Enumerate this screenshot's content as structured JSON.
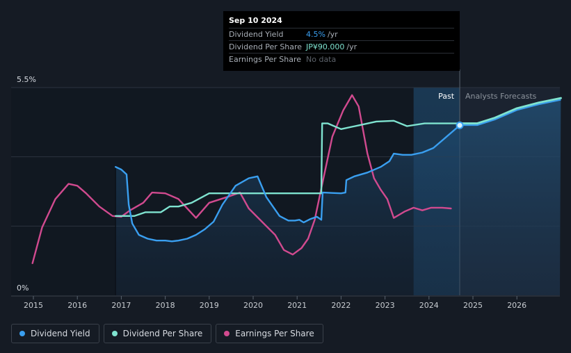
{
  "tooltip": {
    "date": "Sep 10 2024",
    "rows": [
      {
        "label": "Dividend Yield",
        "value": "4.5%",
        "unit": "/yr",
        "color": "#3a9ff0"
      },
      {
        "label": "Dividend Per Share",
        "value": "JP¥90.000",
        "unit": "/yr",
        "color": "#7fe3d0"
      },
      {
        "label": "Earnings Per Share",
        "value": "No data",
        "unit": "",
        "color": "#5d636b"
      }
    ]
  },
  "legend": [
    {
      "label": "Dividend Yield",
      "color": "#3a9ff0"
    },
    {
      "label": "Dividend Per Share",
      "color": "#7fe3d0"
    },
    {
      "label": "Earnings Per Share",
      "color": "#d14a8f"
    }
  ],
  "chart_data": {
    "type": "line",
    "title": "",
    "xlabel": "",
    "ylabel": "",
    "y_tick_labels": [
      "5.5%",
      "0%"
    ],
    "ylim": [
      0,
      5.5
    ],
    "xlim": [
      2014.5,
      2027
    ],
    "x_ticks": [
      "2015",
      "2016",
      "2017",
      "2018",
      "2019",
      "2020",
      "2021",
      "2022",
      "2023",
      "2024",
      "2025",
      "2026"
    ],
    "past_label": "Past",
    "forecast_label": "Analysts Forecasts",
    "past_boundary_x": 2024.7,
    "highlight_start_x": 2023.65,
    "series": [
      {
        "name": "Dividend Yield",
        "color": "#3a9ff0",
        "x": [
          2016.87,
          2017.0,
          2017.12,
          2017.17,
          2017.25,
          2017.4,
          2017.6,
          2017.8,
          2018.0,
          2018.15,
          2018.3,
          2018.5,
          2018.7,
          2018.9,
          2019.1,
          2019.3,
          2019.6,
          2019.9,
          2020.1,
          2020.3,
          2020.6,
          2020.8,
          2020.95,
          2021.05,
          2021.15,
          2021.3,
          2021.45,
          2021.55,
          2021.58,
          2021.6,
          2021.8,
          2022.0,
          2022.1,
          2022.12,
          2022.3,
          2022.6,
          2022.9,
          2023.1,
          2023.2,
          2023.4,
          2023.6,
          2023.85,
          2024.1,
          2024.4,
          2024.7
        ],
        "values": [
          3.4,
          3.33,
          3.2,
          2.4,
          1.9,
          1.6,
          1.5,
          1.45,
          1.45,
          1.43,
          1.45,
          1.5,
          1.6,
          1.75,
          1.95,
          2.4,
          2.9,
          3.1,
          3.15,
          2.6,
          2.1,
          1.98,
          1.98,
          2.0,
          1.93,
          2.02,
          2.08,
          2.0,
          2.72,
          2.72,
          2.71,
          2.7,
          2.72,
          3.05,
          3.15,
          3.25,
          3.4,
          3.55,
          3.75,
          3.72,
          3.72,
          3.78,
          3.9,
          4.2,
          4.5
        ]
      },
      {
        "name": "Dividend Per Share",
        "color": "#7fe3d0",
        "x": [
          2016.87,
          2017.3,
          2017.55,
          2017.9,
          2018.1,
          2018.3,
          2018.6,
          2019.0,
          2019.5,
          2020.0,
          2020.5,
          2021.0,
          2021.55,
          2021.57,
          2021.7,
          2022.0,
          2022.4,
          2022.8,
          2023.2,
          2023.5,
          2023.9,
          2024.2,
          2024.7
        ],
        "values": [
          2.1,
          2.1,
          2.2,
          2.2,
          2.35,
          2.35,
          2.45,
          2.7,
          2.7,
          2.7,
          2.7,
          2.7,
          2.7,
          4.55,
          4.55,
          4.4,
          4.5,
          4.6,
          4.62,
          4.48,
          4.55,
          4.55,
          4.55
        ]
      },
      {
        "name": "Dividend Per Share Forecast",
        "color": "#7fe3d0",
        "x": [
          2024.7,
          2025.1,
          2025.5,
          2026.0,
          2026.5,
          2027.0
        ],
        "values": [
          4.55,
          4.55,
          4.7,
          4.95,
          5.1,
          5.22
        ]
      },
      {
        "name": "Earnings Per Share",
        "color": "#d14a8f",
        "x": [
          2014.98,
          2015.2,
          2015.5,
          2015.8,
          2016.0,
          2016.2,
          2016.5,
          2016.8,
          2017.0,
          2017.2,
          2017.5,
          2017.7,
          2018.0,
          2018.3,
          2018.5,
          2018.7,
          2019.0,
          2019.4,
          2019.7,
          2019.9,
          2020.2,
          2020.5,
          2020.7,
          2020.9,
          2021.1,
          2021.25,
          2021.4,
          2021.6,
          2021.8,
          2022.05,
          2022.25,
          2022.4,
          2022.6,
          2022.75,
          2022.9,
          2023.05,
          2023.2,
          2023.45,
          2023.65,
          2023.85,
          2024.05,
          2024.3,
          2024.5
        ],
        "values": [
          0.85,
          1.8,
          2.55,
          2.95,
          2.9,
          2.7,
          2.35,
          2.1,
          2.08,
          2.25,
          2.45,
          2.72,
          2.7,
          2.55,
          2.3,
          2.05,
          2.45,
          2.6,
          2.72,
          2.3,
          1.95,
          1.6,
          1.2,
          1.08,
          1.25,
          1.5,
          2.0,
          3.1,
          4.2,
          4.9,
          5.3,
          5.0,
          3.75,
          3.1,
          2.8,
          2.55,
          2.05,
          2.22,
          2.32,
          2.25,
          2.32,
          2.32,
          2.3
        ]
      }
    ],
    "marker": {
      "series": "Dividend Yield",
      "x": 2024.7,
      "value": 4.5
    }
  }
}
